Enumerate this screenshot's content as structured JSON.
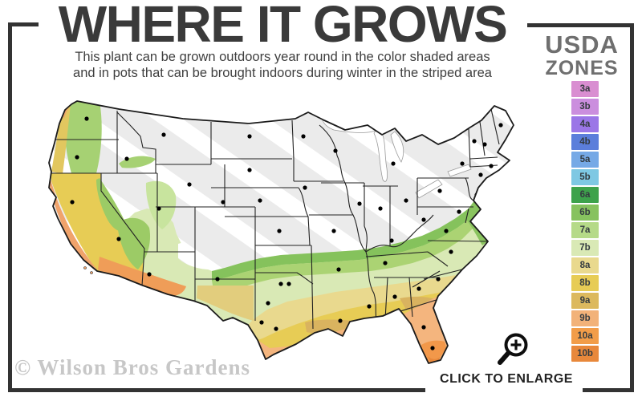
{
  "header": {
    "title": "WHERE IT GROWS",
    "subtitle_line1": "This plant can be grown outdoors year round in the color shaded areas",
    "subtitle_line2": "and in pots that can be brought indoors during winter in the striped area"
  },
  "legend": {
    "title_line1": "USDA",
    "title_line2": "ZONES",
    "zones": [
      {
        "label": "3a",
        "color": "#d98ed1"
      },
      {
        "label": "3b",
        "color": "#cb8ede"
      },
      {
        "label": "4a",
        "color": "#9b76e7"
      },
      {
        "label": "4b",
        "color": "#5b7edb"
      },
      {
        "label": "5a",
        "color": "#76a9e6"
      },
      {
        "label": "5b",
        "color": "#7ec8e3"
      },
      {
        "label": "6a",
        "color": "#3da24b"
      },
      {
        "label": "6b",
        "color": "#87c25f"
      },
      {
        "label": "7a",
        "color": "#b5da88"
      },
      {
        "label": "7b",
        "color": "#d9e9b5"
      },
      {
        "label": "8a",
        "color": "#e9d98e"
      },
      {
        "label": "8b",
        "color": "#e7cc55"
      },
      {
        "label": "9a",
        "color": "#dcb95e"
      },
      {
        "label": "9b",
        "color": "#f2b279"
      },
      {
        "label": "10a",
        "color": "#f29d49"
      },
      {
        "label": "10b",
        "color": "#e8883b"
      }
    ]
  },
  "map": {
    "description": "US hardiness zone map",
    "base_color": "#ebebeb",
    "stripe_color": "#ffffff",
    "outline_color": "#1b1b1b",
    "dot_color": "#000000"
  },
  "footer": {
    "watermark": "© Wilson Bros Gardens",
    "enlarge_label": "CLICK TO ENLARGE",
    "enlarge_icon": "magnifier-plus-icon"
  },
  "frame_color": "#333333"
}
